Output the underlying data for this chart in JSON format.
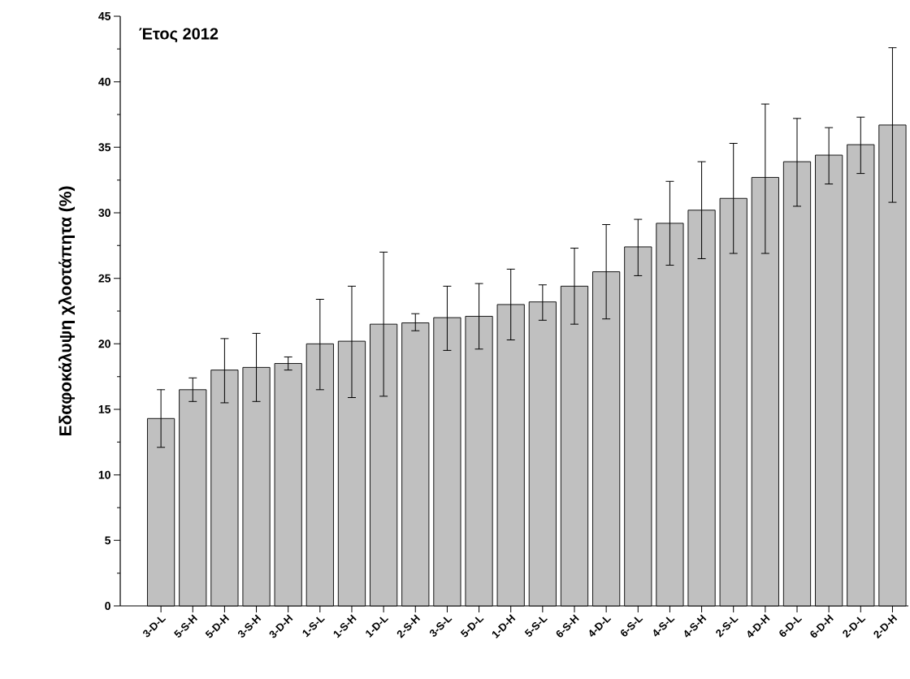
{
  "chart_data": {
    "type": "bar",
    "annotations": [
      "Έτος 2012"
    ],
    "ylabel": "Εδαφοκάλυψη χλοοτάπητα (%)",
    "categories": [
      "3-D-L",
      "5-S-H",
      "5-D-H",
      "3-S-H",
      "3-D-H",
      "1-S-L",
      "1-S-H",
      "1-D-L",
      "2-S-H",
      "3-S-L",
      "5-D-L",
      "1-D-H",
      "5-S-L",
      "6-S-H",
      "4-D-L",
      "6-S-L",
      "4-S-L",
      "4-S-H",
      "2-S-L",
      "4-D-H",
      "6-D-L",
      "6-D-H",
      "2-D-L",
      "2-D-H"
    ],
    "values": [
      14.3,
      16.5,
      18.0,
      18.2,
      18.5,
      20.0,
      20.2,
      21.5,
      21.6,
      22.0,
      22.1,
      23.0,
      23.2,
      24.4,
      25.5,
      27.4,
      29.2,
      30.2,
      31.1,
      32.7,
      33.9,
      34.4,
      35.2,
      36.7
    ],
    "errors": [
      [
        12.1,
        16.5
      ],
      [
        15.6,
        17.4
      ],
      [
        15.5,
        20.4
      ],
      [
        15.6,
        20.8
      ],
      [
        18.0,
        19.0
      ],
      [
        16.5,
        23.4
      ],
      [
        15.9,
        24.4
      ],
      [
        16.0,
        27.0
      ],
      [
        21.0,
        22.3
      ],
      [
        19.5,
        24.4
      ],
      [
        19.6,
        24.6
      ],
      [
        20.3,
        25.7
      ],
      [
        21.8,
        24.5
      ],
      [
        21.5,
        27.3
      ],
      [
        21.9,
        29.1
      ],
      [
        25.2,
        29.5
      ],
      [
        26.0,
        32.4
      ],
      [
        26.5,
        33.9
      ],
      [
        26.9,
        35.3
      ],
      [
        26.9,
        38.3
      ],
      [
        30.5,
        37.2
      ],
      [
        32.2,
        36.5
      ],
      [
        33.0,
        37.3
      ],
      [
        30.8,
        42.6
      ]
    ],
    "color": "#c0c0c0",
    "ylim": [
      0,
      45
    ],
    "yticks": [
      0,
      5,
      10,
      15,
      20,
      25,
      30,
      35,
      40,
      45
    ]
  }
}
